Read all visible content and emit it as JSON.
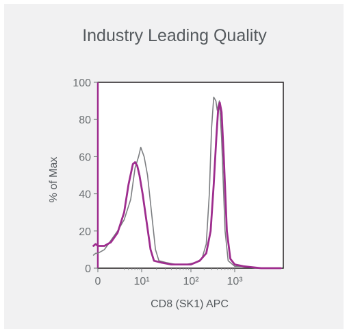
{
  "title": "Industry Leading Quality",
  "chart_data": {
    "type": "line",
    "xlabel": "CD8 (SK1) APC",
    "ylabel": "% of Max",
    "x_scale": "log-like (flow cytometry, 0 then decades)",
    "x_tick_labels": [
      "0",
      "10¹",
      "10²",
      "10³"
    ],
    "y_ticks": [
      0,
      20,
      40,
      60,
      80,
      100
    ],
    "ylim": [
      0,
      100
    ],
    "grid": false,
    "legend": "none",
    "series": [
      {
        "color": "#7b7d80",
        "points": [
          [
            -0.1,
            7
          ],
          [
            -0.05,
            8
          ],
          [
            0,
            8
          ],
          [
            0.15,
            10
          ],
          [
            0.3,
            15
          ],
          [
            0.45,
            20
          ],
          [
            0.6,
            26
          ],
          [
            0.75,
            37
          ],
          [
            0.85,
            54
          ],
          [
            0.93,
            60
          ],
          [
            0.98,
            65
          ],
          [
            1.05,
            60
          ],
          [
            1.12,
            50
          ],
          [
            1.2,
            30
          ],
          [
            1.28,
            10
          ],
          [
            1.35,
            4
          ],
          [
            1.5,
            3
          ],
          [
            1.7,
            2
          ],
          [
            1.9,
            2
          ],
          [
            2.1,
            3
          ],
          [
            2.25,
            5
          ],
          [
            2.35,
            13
          ],
          [
            2.42,
            40
          ],
          [
            2.47,
            75
          ],
          [
            2.52,
            92
          ],
          [
            2.57,
            90
          ],
          [
            2.6,
            85
          ],
          [
            2.65,
            90
          ],
          [
            2.7,
            70
          ],
          [
            2.78,
            20
          ],
          [
            2.85,
            4
          ],
          [
            3,
            1
          ],
          [
            3.2,
            1
          ],
          [
            3.6,
            0
          ],
          [
            4.05,
            0
          ]
        ]
      },
      {
        "color": "#9e2d8e",
        "points": [
          [
            -0.1,
            12
          ],
          [
            -0.05,
            13
          ],
          [
            0,
            12
          ],
          [
            0.15,
            12
          ],
          [
            0.3,
            14
          ],
          [
            0.45,
            19
          ],
          [
            0.6,
            30
          ],
          [
            0.7,
            45
          ],
          [
            0.8,
            56
          ],
          [
            0.85,
            57
          ],
          [
            0.9,
            55
          ],
          [
            0.95,
            50
          ],
          [
            1.02,
            40
          ],
          [
            1.1,
            25
          ],
          [
            1.18,
            10
          ],
          [
            1.25,
            4
          ],
          [
            1.4,
            3
          ],
          [
            1.6,
            2
          ],
          [
            1.8,
            2
          ],
          [
            2,
            2
          ],
          [
            2.2,
            4
          ],
          [
            2.35,
            8
          ],
          [
            2.45,
            20
          ],
          [
            2.52,
            45
          ],
          [
            2.58,
            70
          ],
          [
            2.62,
            85
          ],
          [
            2.66,
            89
          ],
          [
            2.7,
            84
          ],
          [
            2.75,
            60
          ],
          [
            2.82,
            20
          ],
          [
            2.9,
            5
          ],
          [
            3,
            2
          ],
          [
            3.2,
            1
          ],
          [
            3.6,
            0
          ],
          [
            4.05,
            0
          ]
        ]
      }
    ]
  }
}
